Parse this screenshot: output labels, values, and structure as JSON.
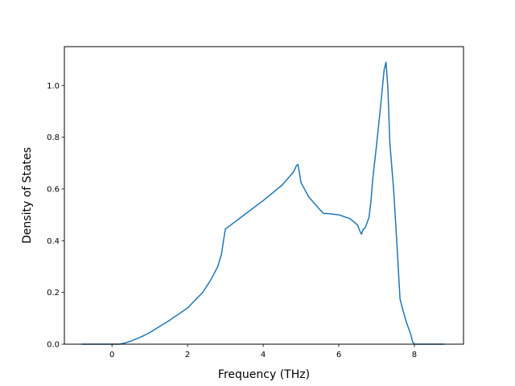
{
  "chart_data": {
    "type": "line",
    "title": "",
    "xlabel": "Frequency (THz)",
    "ylabel": "Density of States",
    "xlim": [
      -1.26,
      9.3
    ],
    "ylim": [
      0.0,
      1.15
    ],
    "xticks": [
      0,
      2,
      4,
      6,
      8
    ],
    "xtick_labels": [
      "0",
      "2",
      "4",
      "6",
      "8"
    ],
    "yticks": [
      0.0,
      0.2,
      0.4,
      0.6,
      0.8,
      1.0
    ],
    "ytick_labels": [
      "0.0",
      "0.2",
      "0.4",
      "0.6",
      "0.8",
      "1.0"
    ],
    "grid": false,
    "series": [
      {
        "name": "",
        "color": "#1f77b4",
        "x": [
          -0.8,
          -0.4,
          0.0,
          0.2,
          0.3,
          0.5,
          0.8,
          1.0,
          1.5,
          2.0,
          2.4,
          2.6,
          2.8,
          2.9,
          2.95,
          3.0,
          3.5,
          4.0,
          4.5,
          4.8,
          4.88,
          4.92,
          5.0,
          5.2,
          5.5,
          5.6,
          5.7,
          6.0,
          6.3,
          6.5,
          6.55,
          6.6,
          6.65,
          6.7,
          6.75,
          6.8,
          6.85,
          6.9,
          7.0,
          7.1,
          7.2,
          7.25,
          7.3,
          7.35,
          7.45,
          7.55,
          7.62,
          7.7,
          7.8,
          7.9,
          7.95,
          8.0,
          8.1,
          8.4,
          8.8
        ],
        "y": [
          0.0,
          0.0,
          0.0,
          0.0,
          0.003,
          0.012,
          0.03,
          0.045,
          0.09,
          0.14,
          0.2,
          0.245,
          0.3,
          0.35,
          0.4,
          0.445,
          0.5,
          0.555,
          0.615,
          0.665,
          0.69,
          0.695,
          0.625,
          0.57,
          0.52,
          0.505,
          0.505,
          0.5,
          0.485,
          0.46,
          0.44,
          0.425,
          0.445,
          0.45,
          0.47,
          0.49,
          0.55,
          0.64,
          0.77,
          0.91,
          1.06,
          1.09,
          0.99,
          0.78,
          0.6,
          0.36,
          0.175,
          0.13,
          0.08,
          0.04,
          0.01,
          0.0,
          0.0,
          0.0,
          0.0
        ]
      }
    ]
  }
}
